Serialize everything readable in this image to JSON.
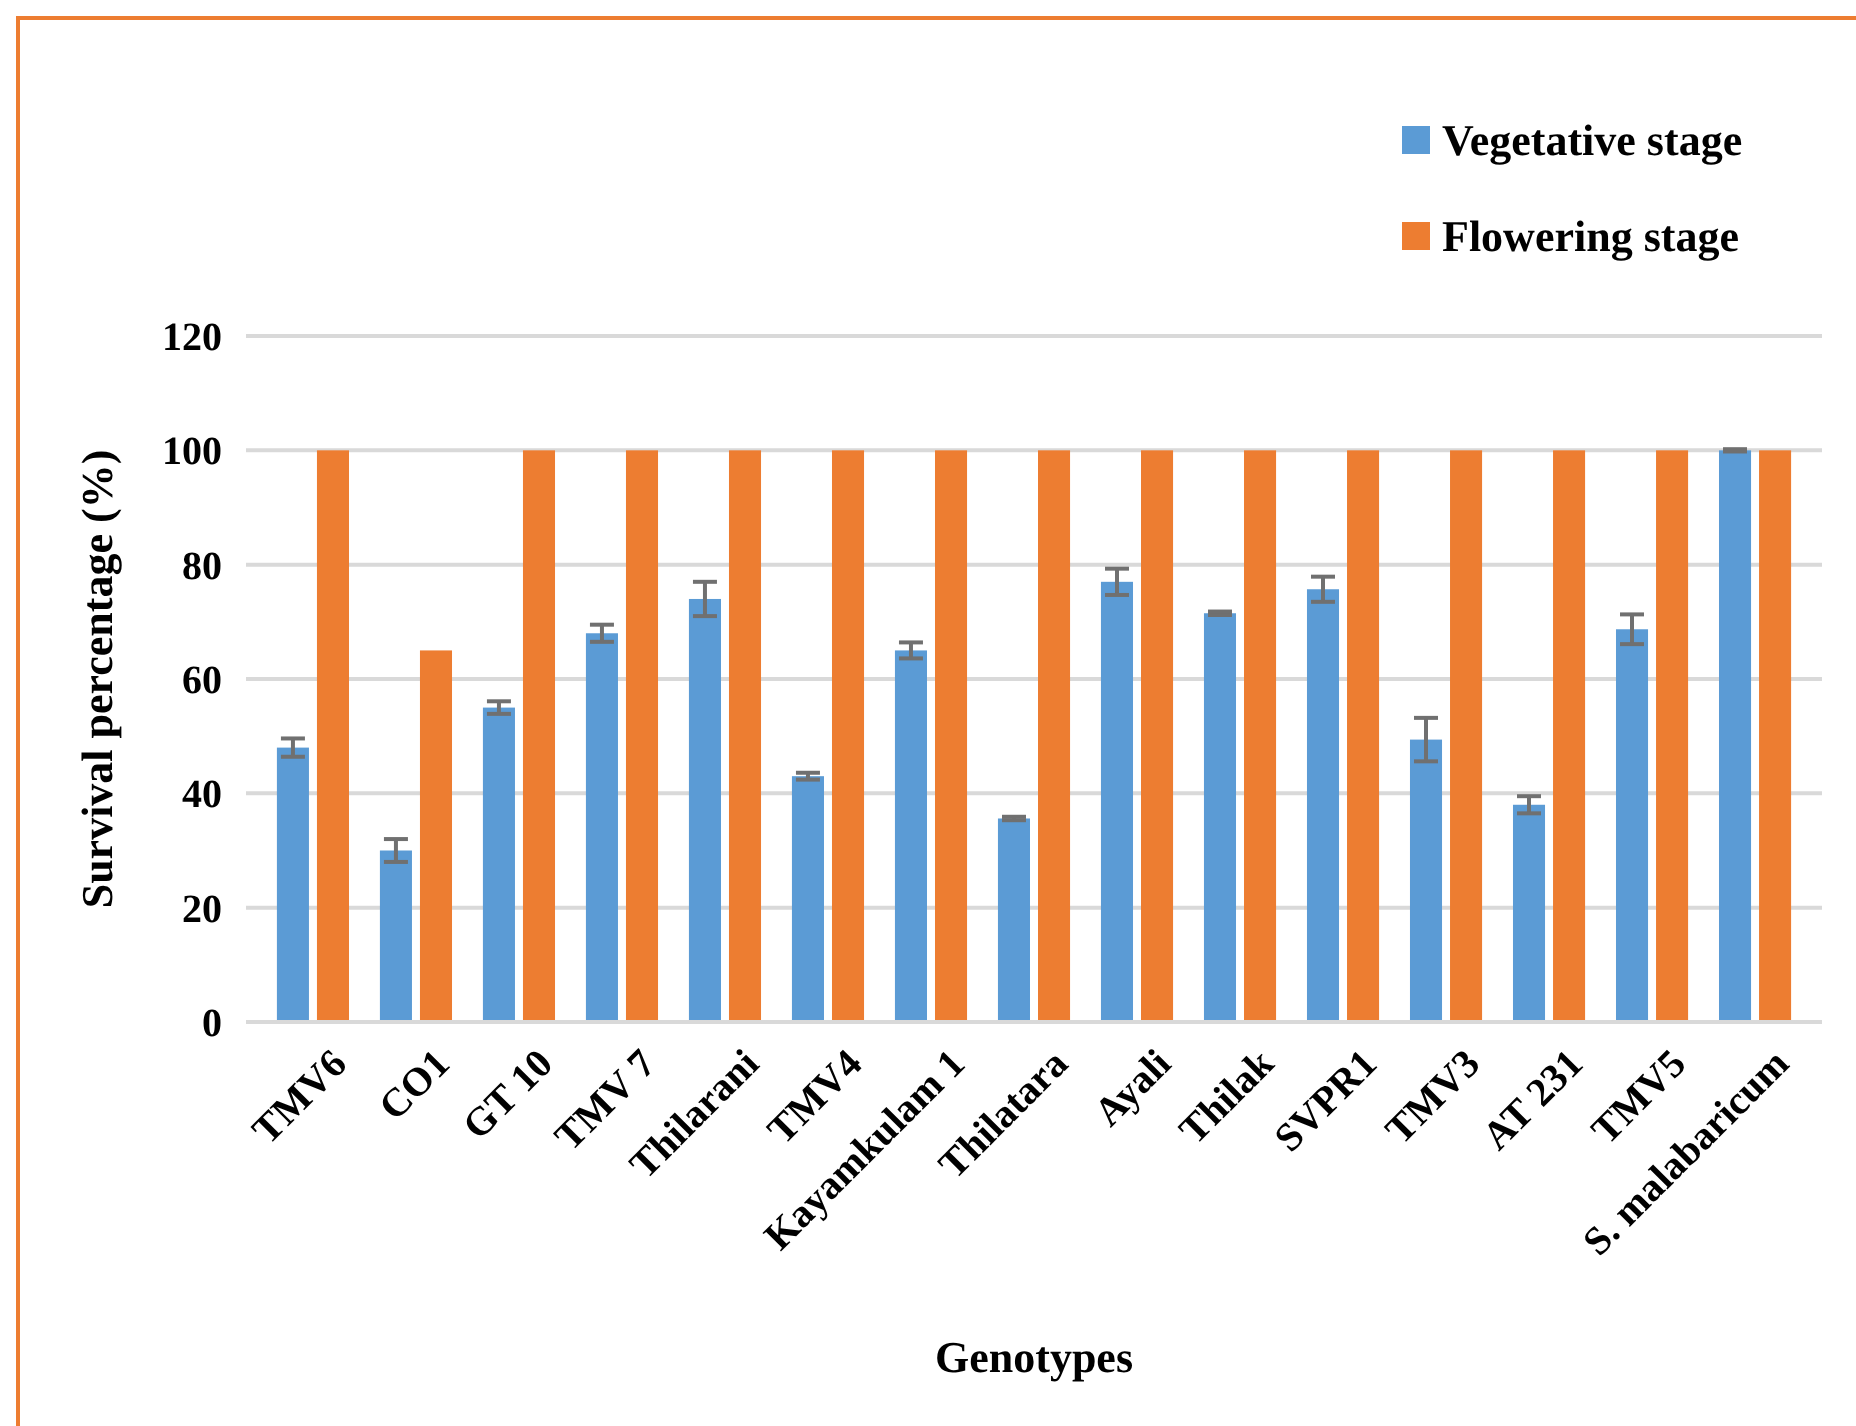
{
  "chart_data": {
    "type": "bar",
    "xlabel": "Genotypes",
    "ylabel": "Survival percentage (%)",
    "categories": [
      "TMV6",
      "CO1",
      "GT 10",
      "TMV 7",
      "Thilarani",
      "TMV4",
      "Kayamkulam 1",
      "Thilatara",
      "Ayali",
      "Thilak",
      "SVPR1",
      "TMV3",
      "AT 231",
      "TMV5",
      "S. malabaricum"
    ],
    "series": [
      {
        "name": "Vegetative stage",
        "color": "#5b9bd5",
        "values": [
          48,
          30,
          55,
          68,
          74,
          43,
          65,
          35.6,
          77,
          71.5,
          75.7,
          49.4,
          38,
          68.7,
          100
        ],
        "errors": [
          1.6,
          2,
          1.1,
          1.5,
          3,
          0.6,
          1.4,
          0.3,
          2.3,
          0.3,
          2.2,
          3.8,
          1.5,
          2.6,
          0.2
        ]
      },
      {
        "name": "Flowering stage",
        "color": "#ed7d31",
        "values": [
          100,
          65,
          100,
          100,
          100,
          100,
          100,
          100,
          100,
          100,
          100,
          100,
          100,
          100,
          100
        ]
      }
    ],
    "ylim": [
      0,
      120
    ],
    "yticks": [
      0,
      20,
      40,
      60,
      80,
      100,
      120
    ],
    "grid": "y",
    "legend": "top right"
  }
}
